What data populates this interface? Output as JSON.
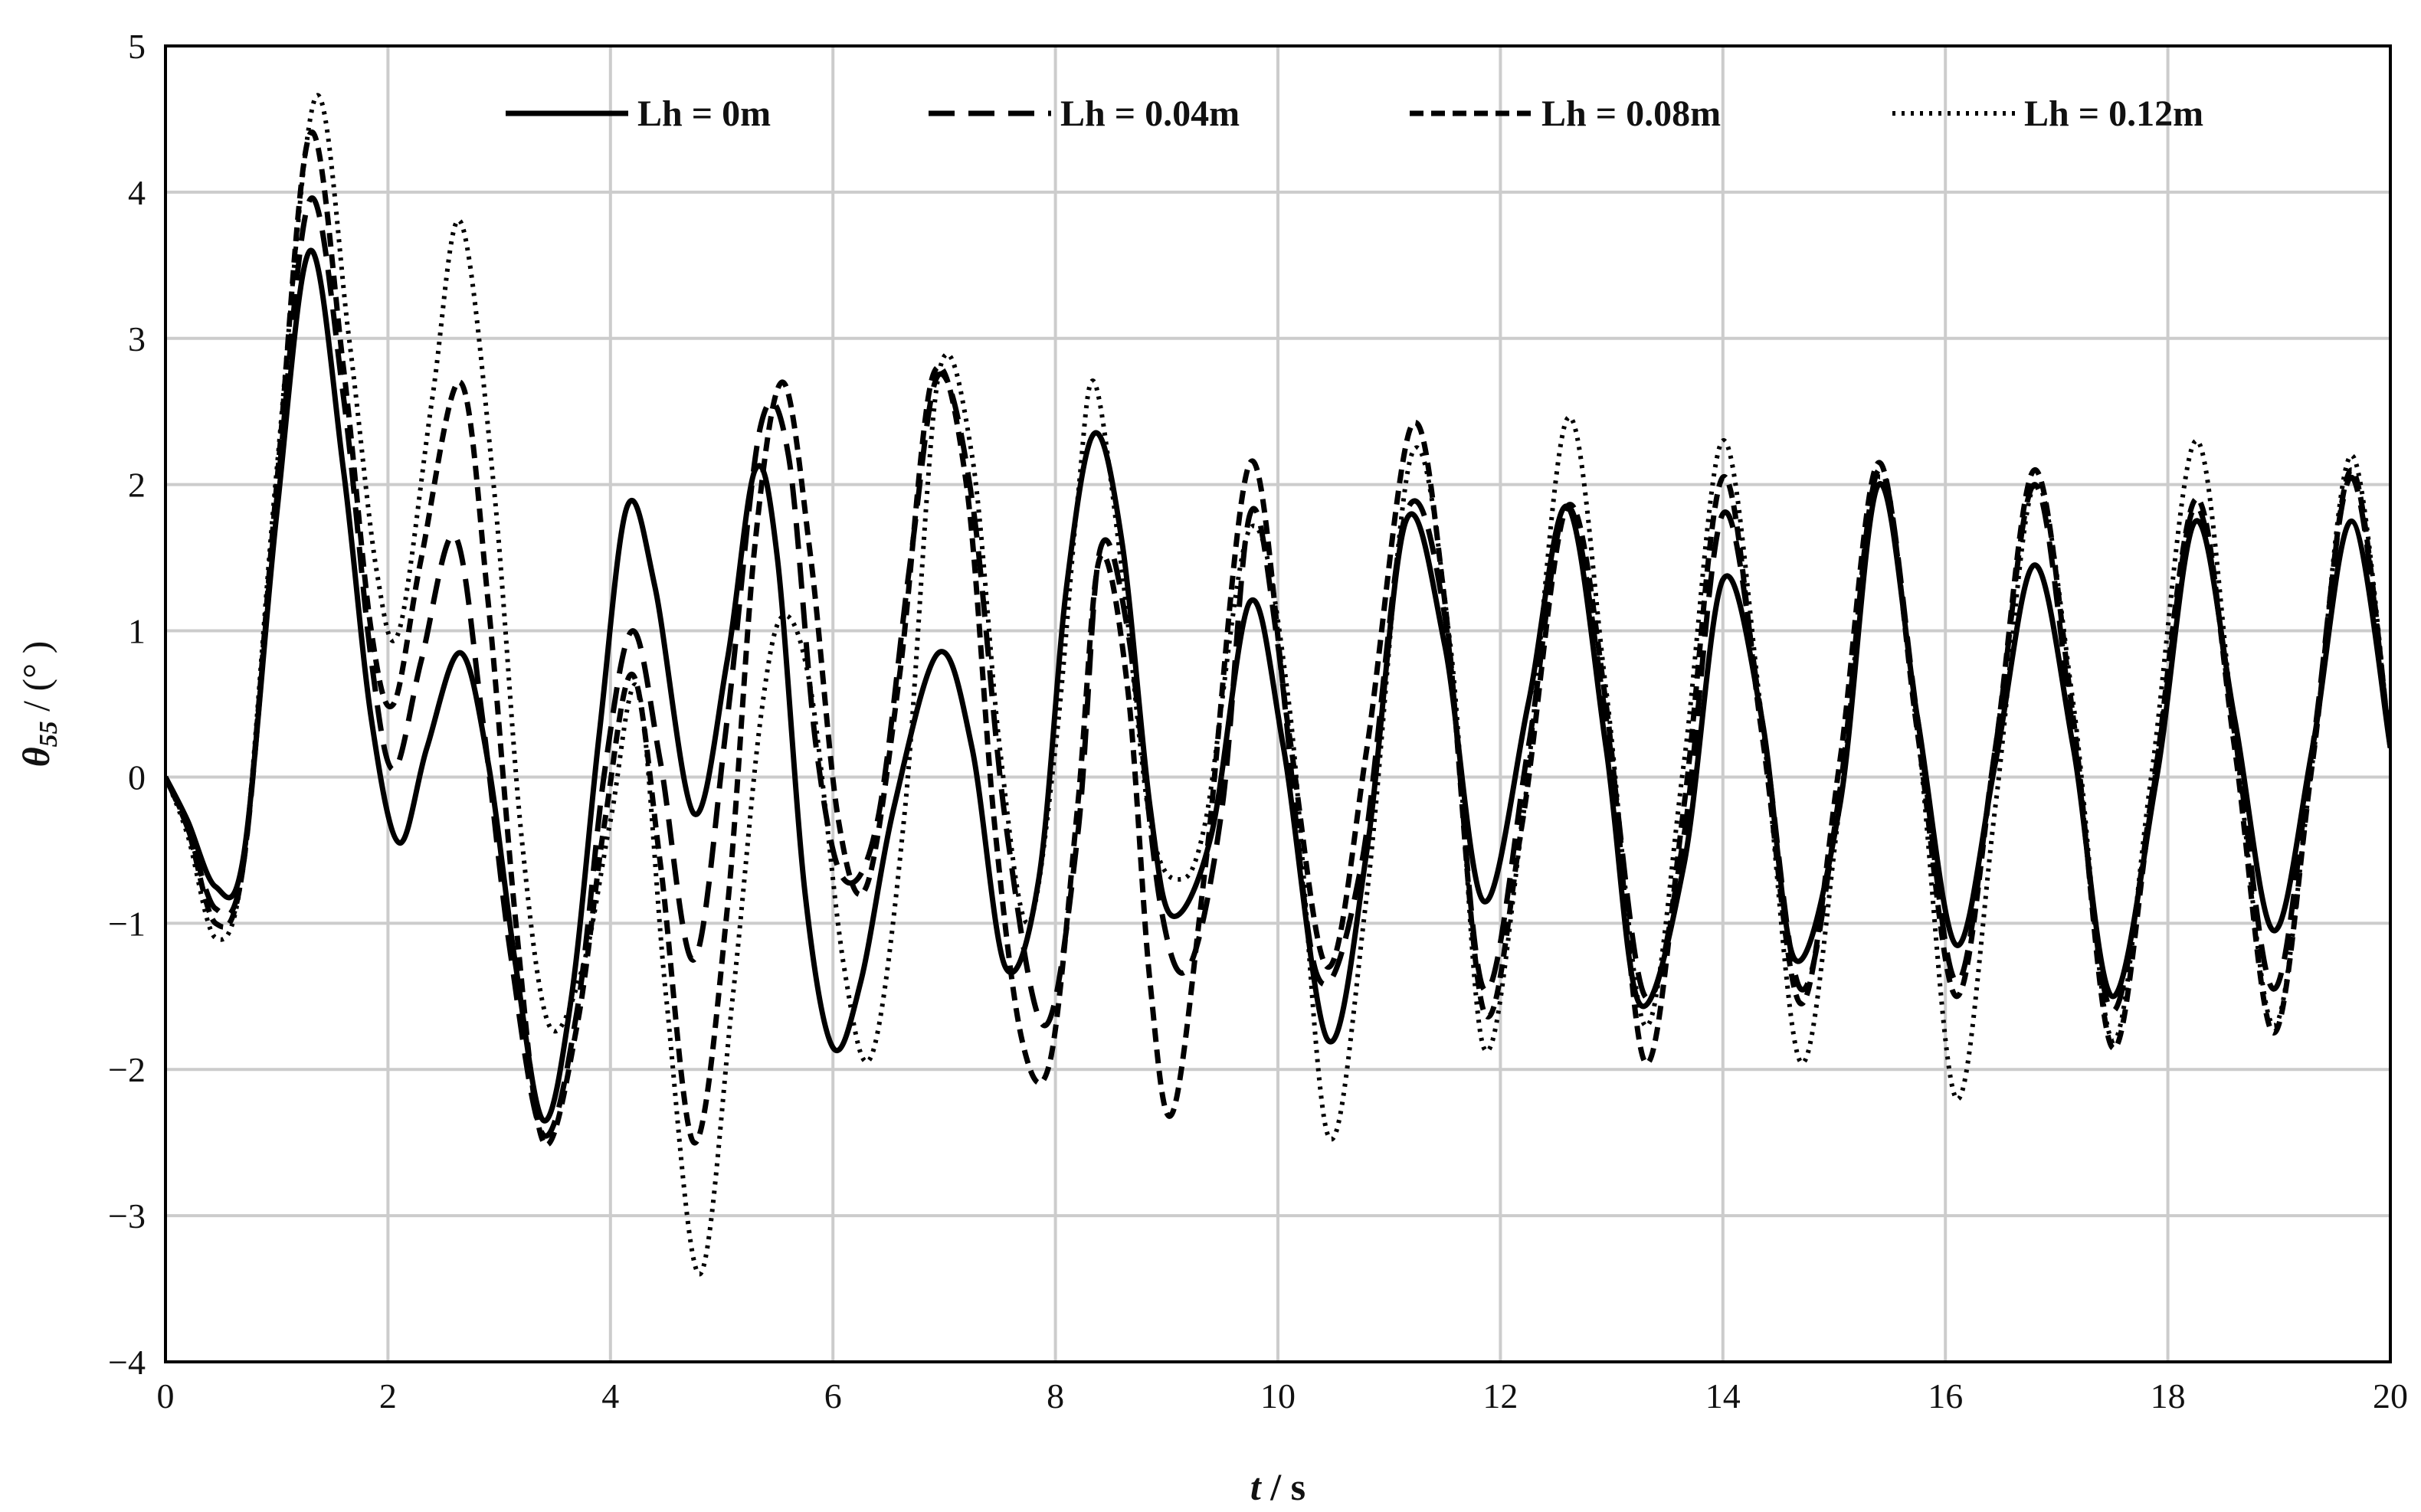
{
  "chart_data": {
    "type": "line",
    "xlabel_var": "t",
    "xlabel_unit": " / s",
    "ylabel_var": "θ",
    "ylabel_sub": "55",
    "ylabel_unit": " / (° )",
    "xlim": [
      0,
      20
    ],
    "ylim": [
      -4,
      5
    ],
    "xticks": [
      "0",
      "2",
      "4",
      "6",
      "8",
      "10",
      "12",
      "14",
      "16",
      "18",
      "20"
    ],
    "yticks": [
      "5",
      "4",
      "3",
      "2",
      "1",
      "0",
      "−1",
      "−2",
      "−3",
      "−4"
    ],
    "grid": true,
    "legend_position": "top",
    "series": [
      {
        "name": "Lh = 0m",
        "style": "solid",
        "x": [
          0,
          0.2,
          0.45,
          0.7,
          1.0,
          1.3,
          1.6,
          1.85,
          2.1,
          2.35,
          2.65,
          2.9,
          3.15,
          3.4,
          3.65,
          3.9,
          4.15,
          4.4,
          4.75,
          5.05,
          5.3,
          5.5,
          5.75,
          6.0,
          6.25,
          6.55,
          6.95,
          7.25,
          7.55,
          7.85,
          8.1,
          8.35,
          8.6,
          8.85,
          9.05,
          9.4,
          9.75,
          10.05,
          10.45,
          10.8,
          11.15,
          11.5,
          11.85,
          12.25,
          12.6,
          12.95,
          13.25,
          13.65,
          14.0,
          14.35,
          14.65,
          15.05,
          15.4,
          15.75,
          16.1,
          16.45,
          16.8,
          17.15,
          17.5,
          17.9,
          18.25,
          18.6,
          18.95,
          19.3,
          19.65,
          20.0
        ],
        "y": [
          0,
          -0.3,
          -0.75,
          -0.55,
          1.8,
          3.6,
          2.1,
          0.4,
          -0.45,
          0.2,
          0.85,
          0.1,
          -1.3,
          -2.35,
          -1.5,
          0.3,
          1.85,
          1.3,
          -0.25,
          0.8,
          2.1,
          1.5,
          -0.8,
          -1.85,
          -1.4,
          -0.2,
          0.85,
          0.2,
          -1.3,
          -0.7,
          1.3,
          2.35,
          1.6,
          -0.2,
          -0.95,
          -0.4,
          1.2,
          0.2,
          -1.8,
          -0.5,
          1.75,
          0.9,
          -0.85,
          0.5,
          1.85,
          0.2,
          -1.55,
          -0.6,
          1.35,
          0.4,
          -1.25,
          -0.2,
          2.0,
          0.4,
          -1.15,
          0.1,
          1.45,
          0.2,
          -1.5,
          0.0,
          1.75,
          0.4,
          -1.05,
          0.2,
          1.75,
          0.2
        ]
      },
      {
        "name": "Lh = 0.04m",
        "style": "dash",
        "x": [
          0,
          0.2,
          0.45,
          0.7,
          1.0,
          1.3,
          1.6,
          1.85,
          2.05,
          2.3,
          2.6,
          2.85,
          3.1,
          3.4,
          3.7,
          3.95,
          4.2,
          4.45,
          4.75,
          5.05,
          5.35,
          5.6,
          5.85,
          6.1,
          6.4,
          6.7,
          6.95,
          7.25,
          7.55,
          7.9,
          8.2,
          8.4,
          8.65,
          8.95,
          9.2,
          9.5,
          9.75,
          10.0,
          10.35,
          10.75,
          11.15,
          11.5,
          11.85,
          12.25,
          12.6,
          12.95,
          13.3,
          13.65,
          14.0,
          14.35,
          14.7,
          15.05,
          15.4,
          15.75,
          16.1,
          16.45,
          16.8,
          17.15,
          17.5,
          17.9,
          18.25,
          18.6,
          18.95,
          19.3,
          19.65,
          20.0
        ],
        "y": [
          0,
          -0.35,
          -0.9,
          -0.6,
          1.9,
          3.95,
          2.6,
          0.8,
          0.05,
          0.8,
          1.65,
          0.4,
          -1.2,
          -2.45,
          -1.6,
          0.05,
          1.0,
          0.1,
          -1.25,
          0.4,
          2.4,
          2.2,
          0.2,
          -0.7,
          -0.3,
          1.5,
          2.75,
          1.9,
          -0.3,
          -1.7,
          -0.4,
          1.55,
          1.0,
          -0.9,
          -1.3,
          -0.2,
          1.8,
          0.9,
          -1.35,
          -0.6,
          1.8,
          1.1,
          -1.45,
          0.2,
          1.85,
          0.4,
          -1.5,
          -0.4,
          1.8,
          0.4,
          -1.45,
          -0.1,
          2.1,
          0.4,
          -1.4,
          0.2,
          2.0,
          0.3,
          -1.6,
          0.1,
          1.85,
          0.3,
          -1.45,
          0.2,
          2.05,
          0.2
        ]
      },
      {
        "name": "Lh = 0.08m",
        "style": "dashdense",
        "x": [
          0,
          0.2,
          0.45,
          0.7,
          1.0,
          1.3,
          1.6,
          1.85,
          2.05,
          2.3,
          2.65,
          2.9,
          3.15,
          3.4,
          3.7,
          3.95,
          4.2,
          4.45,
          4.75,
          5.05,
          5.3,
          5.55,
          5.8,
          6.05,
          6.3,
          6.6,
          6.9,
          7.2,
          7.45,
          7.7,
          7.95,
          8.2,
          8.4,
          8.65,
          8.85,
          9.05,
          9.35,
          9.75,
          10.1,
          10.45,
          10.8,
          11.2,
          11.5,
          11.85,
          12.2,
          12.6,
          12.95,
          13.3,
          13.65,
          14.0,
          14.35,
          14.7,
          15.05,
          15.4,
          15.75,
          16.1,
          16.45,
          16.8,
          17.15,
          17.5,
          17.85,
          18.25,
          18.6,
          18.95,
          19.3,
          19.65,
          20.0
        ],
        "y": [
          0,
          -0.35,
          -1.0,
          -0.6,
          2.0,
          4.4,
          2.8,
          1.0,
          0.5,
          1.5,
          2.7,
          1.2,
          -1.0,
          -2.5,
          -1.7,
          -0.3,
          0.7,
          -0.6,
          -2.5,
          -0.9,
          1.6,
          2.7,
          1.5,
          -0.3,
          -0.75,
          0.7,
          2.75,
          2.0,
          -0.3,
          -1.8,
          -1.95,
          -0.2,
          1.5,
          0.6,
          -1.4,
          -2.3,
          -0.6,
          2.15,
          0.3,
          -1.3,
          0.2,
          2.4,
          1.2,
          -1.6,
          -0.3,
          1.85,
          0.5,
          -1.95,
          -0.2,
          2.05,
          0.3,
          -1.55,
          0.1,
          2.15,
          0.3,
          -1.5,
          0.2,
          2.1,
          0.4,
          -1.85,
          -0.2,
          1.9,
          0.2,
          -1.75,
          0.1,
          2.1,
          0.2
        ]
      },
      {
        "name": "Lh = 0.12m",
        "style": "dot",
        "x": [
          0,
          0.2,
          0.45,
          0.7,
          1.0,
          1.35,
          1.65,
          1.9,
          2.1,
          2.4,
          2.65,
          2.95,
          3.2,
          3.45,
          3.75,
          4.0,
          4.25,
          4.5,
          4.8,
          5.1,
          5.35,
          5.55,
          5.8,
          6.1,
          6.35,
          6.65,
          6.95,
          7.25,
          7.5,
          7.75,
          8.0,
          8.2,
          8.35,
          8.6,
          8.85,
          9.1,
          9.35,
          9.75,
          10.1,
          10.45,
          10.8,
          11.2,
          11.55,
          11.85,
          12.2,
          12.6,
          12.95,
          13.3,
          13.65,
          14.0,
          14.35,
          14.7,
          15.05,
          15.4,
          15.75,
          16.1,
          16.45,
          16.8,
          17.15,
          17.5,
          17.85,
          18.25,
          18.6,
          18.95,
          19.3,
          19.65,
          20.0
        ],
        "y": [
          0,
          -0.4,
          -1.1,
          -0.6,
          2.1,
          4.65,
          3.0,
          1.4,
          1.0,
          2.6,
          3.8,
          2.0,
          -0.4,
          -1.7,
          -1.3,
          -0.3,
          0.6,
          -1.5,
          -3.4,
          -1.5,
          0.4,
          1.1,
          0.6,
          -1.3,
          -1.9,
          -0.2,
          2.75,
          2.2,
          0.2,
          -1.0,
          0.2,
          1.9,
          2.7,
          1.4,
          -0.3,
          -0.7,
          -0.3,
          1.7,
          0.5,
          -2.45,
          -0.8,
          2.2,
          0.9,
          -1.85,
          -0.3,
          2.45,
          0.6,
          -1.7,
          0.1,
          2.3,
          0.4,
          -1.95,
          -0.2,
          2.05,
          0.3,
          -2.2,
          -0.2,
          2.0,
          0.5,
          -1.8,
          0.0,
          2.3,
          0.3,
          -1.7,
          0.1,
          2.2,
          0.2
        ]
      }
    ]
  }
}
